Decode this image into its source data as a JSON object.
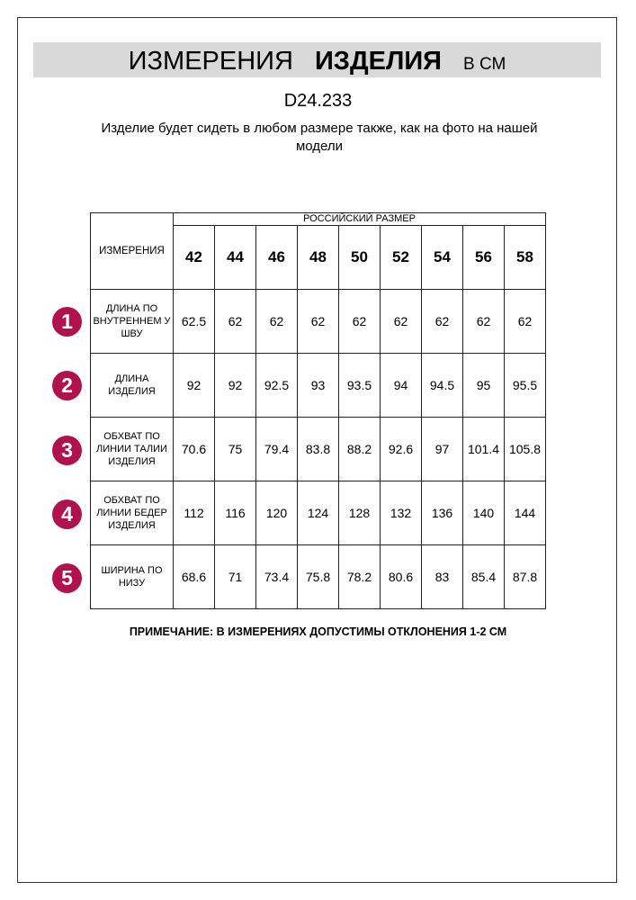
{
  "title": {
    "part1": "ИЗМЕРЕНИЯ",
    "part2": "ИЗДЕЛИЯ",
    "unit": "В СМ"
  },
  "article": "D24.233",
  "subtitle": "Изделие будет сидеть в любом размере также, как на фото на нашей модели",
  "table": {
    "corner_label": "ИЗМЕРЕНИЯ",
    "group_header": "РОССИЙСКИЙ РАЗМЕР",
    "sizes": [
      "42",
      "44",
      "46",
      "48",
      "50",
      "52",
      "54",
      "56",
      "58"
    ],
    "rows": [
      {
        "index": "1",
        "label": "ДЛИНА ПО ВНУТРЕННЕМ У ШВУ",
        "values": [
          "62.5",
          "62",
          "62",
          "62",
          "62",
          "62",
          "62",
          "62",
          "62"
        ]
      },
      {
        "index": "2",
        "label": "ДЛИНА ИЗДЕЛИЯ",
        "values": [
          "92",
          "92",
          "92.5",
          "93",
          "93.5",
          "94",
          "94.5",
          "95",
          "95.5"
        ]
      },
      {
        "index": "3",
        "label": "ОБХВАТ ПО ЛИНИИ ТАЛИИ ИЗДЕЛИЯ",
        "values": [
          "70.6",
          "75",
          "79.4",
          "83.8",
          "88.2",
          "92.6",
          "97",
          "101.4",
          "105.8"
        ]
      },
      {
        "index": "4",
        "label": "ОБХВАТ ПО ЛИНИИ БЕДЕР ИЗДЕЛИЯ",
        "values": [
          "112",
          "116",
          "120",
          "124",
          "128",
          "132",
          "136",
          "140",
          "144"
        ]
      },
      {
        "index": "5",
        "label": "ШИРИНА ПО НИЗУ",
        "values": [
          "68.6",
          "71",
          "73.4",
          "75.8",
          "78.2",
          "80.6",
          "83",
          "85.4",
          "87.8"
        ]
      }
    ]
  },
  "note": "ПРИМЕЧАНИЕ: В ИЗМЕРЕНИЯХ ДОПУСТИМЫ ОТКЛОНЕНИЯ 1-2 СМ",
  "colors": {
    "badge": "#b0124e",
    "title_bar": "#d9d9d9"
  }
}
